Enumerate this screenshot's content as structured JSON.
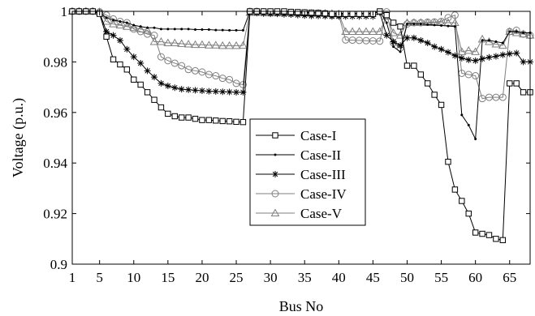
{
  "chart_data": {
    "type": "line",
    "title": "",
    "xlabel": "Bus No",
    "ylabel": "Voltage (p.u.)",
    "xlim": [
      1,
      68
    ],
    "ylim": [
      0.9,
      1.0
    ],
    "xticks": [
      1,
      5,
      10,
      15,
      20,
      25,
      30,
      35,
      40,
      45,
      50,
      55,
      60,
      65
    ],
    "yticks": [
      0.9,
      0.92,
      0.94,
      0.96,
      0.98,
      1.0
    ],
    "ytick_labels": [
      "0.9",
      "0.92",
      "0.94",
      "0.96",
      "0.98",
      "1"
    ],
    "grid": false,
    "legend_position": "center",
    "line_color": "#000000",
    "x": [
      1,
      2,
      3,
      4,
      5,
      6,
      7,
      8,
      9,
      10,
      11,
      12,
      13,
      14,
      15,
      16,
      17,
      18,
      19,
      20,
      21,
      22,
      23,
      24,
      25,
      26,
      27,
      28,
      29,
      30,
      31,
      32,
      33,
      34,
      35,
      36,
      37,
      38,
      39,
      40,
      41,
      42,
      43,
      44,
      45,
      46,
      47,
      48,
      49,
      50,
      51,
      52,
      53,
      54,
      55,
      56,
      57,
      58,
      59,
      60,
      61,
      62,
      63,
      64,
      65,
      66,
      67,
      68
    ],
    "series": [
      {
        "name": "Case-I",
        "marker": "square",
        "color": "#000000",
        "values": [
          1.0,
          1.0,
          1.0,
          1.0,
          0.999,
          0.99,
          0.981,
          0.979,
          0.977,
          0.973,
          0.971,
          0.968,
          0.965,
          0.962,
          0.9595,
          0.9585,
          0.958,
          0.958,
          0.9575,
          0.957,
          0.957,
          0.9568,
          0.9566,
          0.9565,
          0.9563,
          0.9562,
          1.0,
          1.0,
          1.0,
          1.0,
          1.0,
          1.0,
          0.9998,
          0.9997,
          0.9996,
          0.9995,
          0.9994,
          0.9992,
          0.999,
          0.999,
          0.999,
          0.999,
          0.999,
          0.999,
          0.999,
          1.0,
          0.9985,
          0.9955,
          0.994,
          0.9785,
          0.9785,
          0.975,
          0.9715,
          0.967,
          0.963,
          0.9405,
          0.9295,
          0.925,
          0.92,
          0.9125,
          0.912,
          0.9115,
          0.91,
          0.9095,
          0.9715,
          0.9715,
          0.968,
          0.968
        ]
      },
      {
        "name": "Case-II",
        "marker": "dot",
        "color": "#000000",
        "values": [
          1.0,
          1.0,
          1.0,
          1.0,
          0.9995,
          0.9975,
          0.9965,
          0.996,
          0.9955,
          0.9945,
          0.994,
          0.9935,
          0.9935,
          0.993,
          0.993,
          0.993,
          0.993,
          0.993,
          0.9928,
          0.9928,
          0.9928,
          0.9926,
          0.9926,
          0.9925,
          0.9925,
          0.9925,
          1.0,
          1.0,
          1.0,
          1.0,
          1.0,
          1.0,
          0.9998,
          0.9997,
          0.9996,
          0.9995,
          0.9994,
          0.9993,
          0.9993,
          0.9992,
          0.9992,
          0.9992,
          0.9992,
          0.9992,
          0.9992,
          1.0,
          0.9955,
          0.986,
          0.984,
          0.995,
          0.995,
          0.995,
          0.9948,
          0.9946,
          0.9944,
          0.9942,
          0.994,
          0.959,
          0.955,
          0.9495,
          0.9885,
          0.9885,
          0.988,
          0.9875,
          0.992,
          0.992,
          0.9915,
          0.9915
        ]
      },
      {
        "name": "Case-III",
        "marker": "star",
        "color": "#000000",
        "values": [
          1.0,
          1.0,
          1.0,
          1.0,
          0.9995,
          0.992,
          0.9905,
          0.9885,
          0.985,
          0.982,
          0.9795,
          0.9765,
          0.974,
          0.9715,
          0.9705,
          0.9698,
          0.9692,
          0.969,
          0.9688,
          0.9686,
          0.9684,
          0.9683,
          0.9682,
          0.9681,
          0.968,
          0.968,
          0.9995,
          0.9993,
          0.9991,
          0.999,
          0.999,
          0.9988,
          0.9987,
          0.9985,
          0.9983,
          0.9982,
          0.9982,
          0.9981,
          0.998,
          0.998,
          0.998,
          0.998,
          0.998,
          0.998,
          0.998,
          0.9995,
          0.9905,
          0.988,
          0.9865,
          0.9895,
          0.9895,
          0.9885,
          0.9875,
          0.986,
          0.985,
          0.9838,
          0.9825,
          0.9815,
          0.9808,
          0.9805,
          0.9812,
          0.9818,
          0.9822,
          0.9828,
          0.9832,
          0.9835,
          0.98,
          0.98
        ]
      },
      {
        "name": "Case-IV",
        "marker": "circle",
        "color": "#7f7f7f",
        "values": [
          1.0,
          1.0,
          1.0,
          1.0,
          0.9998,
          0.9985,
          0.997,
          0.996,
          0.9955,
          0.993,
          0.992,
          0.991,
          0.9905,
          0.982,
          0.9805,
          0.9795,
          0.9785,
          0.977,
          0.9765,
          0.976,
          0.975,
          0.9745,
          0.9735,
          0.973,
          0.9715,
          0.971,
          1.0,
          1.0,
          0.9998,
          0.9997,
          0.9997,
          0.9996,
          0.9994,
          0.9993,
          0.9992,
          0.999,
          0.999,
          0.9988,
          0.9985,
          0.9985,
          0.9887,
          0.9886,
          0.9885,
          0.9884,
          0.9883,
          0.9882,
          0.9998,
          0.9875,
          0.9855,
          0.995,
          0.9955,
          0.9955,
          0.9957,
          0.9958,
          0.996,
          0.9975,
          0.9985,
          0.9755,
          0.975,
          0.9745,
          0.9655,
          0.966,
          0.966,
          0.966,
          0.992,
          0.9925,
          0.991,
          0.9905
        ]
      },
      {
        "name": "Case-V",
        "marker": "triangle",
        "color": "#7f7f7f",
        "values": [
          1.0,
          1.0,
          1.0,
          1.0,
          0.9998,
          0.996,
          0.995,
          0.9945,
          0.994,
          0.9935,
          0.993,
          0.9925,
          0.988,
          0.988,
          0.9875,
          0.9875,
          0.9872,
          0.987,
          0.9868,
          0.9868,
          0.9866,
          0.9866,
          0.9864,
          0.9864,
          0.9864,
          0.9865,
          0.9995,
          0.9995,
          0.9995,
          0.9994,
          0.9994,
          0.9994,
          0.9994,
          0.9993,
          0.9993,
          0.9992,
          0.9992,
          0.9992,
          0.9991,
          0.999,
          0.992,
          0.992,
          0.992,
          0.992,
          0.992,
          0.992,
          0.998,
          0.9915,
          0.9905,
          0.9955,
          0.9955,
          0.9955,
          0.9955,
          0.9955,
          0.9955,
          0.9955,
          0.9955,
          0.984,
          0.9845,
          0.984,
          0.989,
          0.988,
          0.987,
          0.9865,
          0.992,
          0.9915,
          0.991,
          0.9905
        ]
      }
    ]
  }
}
